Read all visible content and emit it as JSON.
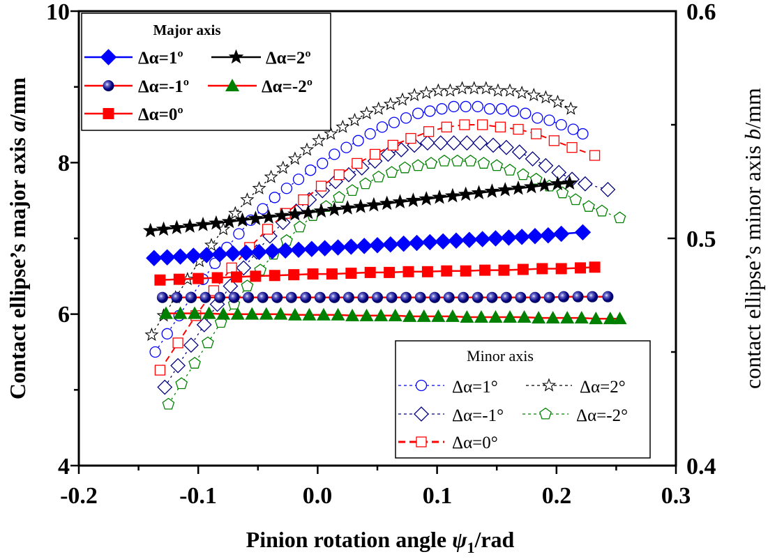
{
  "chart_data": {
    "type": "line",
    "title": "",
    "xlabel": "Pinion rotation angle ψ1/rad",
    "xlabel_main": "Pinion rotation angle ",
    "xlabel_symbol": "ψ",
    "xlabel_subscript": "1",
    "xlabel_unit": "/rad",
    "ylabel": "Contact ellipse's major axis a/mm",
    "ylabel_main": "Contact ellipse’s major axis ",
    "ylabel_symbol": "a",
    "ylabel_unit": "/mm",
    "y2label": "contact ellipse's minor axis b/mm",
    "y2label_main": "contact ellipse’s minor axis ",
    "y2label_symbol": "b",
    "y2label_unit": "/mm",
    "xlim": [
      -0.2,
      0.3
    ],
    "ylim": [
      4,
      10
    ],
    "y2lim": [
      0.4,
      0.6
    ],
    "xticks": [
      -0.2,
      -0.1,
      0.0,
      0.1,
      0.2,
      0.3
    ],
    "xtick_labels": [
      "-0.2",
      "-0.1",
      "0.0",
      "0.1",
      "0.2",
      "0.3"
    ],
    "yticks": [
      4,
      6,
      8,
      10
    ],
    "ytick_labels": [
      "4",
      "6",
      "8",
      "10"
    ],
    "y2ticks": [
      0.4,
      0.5,
      0.6
    ],
    "y2tick_labels": [
      "0.4",
      "0.5",
      "0.6"
    ],
    "grid": false,
    "legends": [
      {
        "title": "Major axis",
        "placement": "top-left",
        "entries": [
          "Δα=1º",
          "Δα=2º",
          "Δα=-1º",
          "Δα=-2º",
          "Δα=0º"
        ]
      },
      {
        "title": "Minor axis",
        "placement": "bottom-right",
        "entries": [
          "Δα=1°",
          "Δα=2°",
          "Δα=-1°",
          "Δα=-2°",
          "Δα=0°"
        ]
      }
    ],
    "series": [
      {
        "name": "Major Δα=1º",
        "axis": "left",
        "color": "#0000ff",
        "line_color": "#0000ff",
        "marker": "diamond-filled",
        "line": "solid",
        "x": [
          -0.137,
          -0.126,
          -0.115,
          -0.104,
          -0.093,
          -0.082,
          -0.071,
          -0.06,
          -0.049,
          -0.038,
          -0.027,
          -0.016,
          -0.005,
          0.006,
          0.017,
          0.028,
          0.039,
          0.05,
          0.061,
          0.072,
          0.083,
          0.094,
          0.105,
          0.116,
          0.127,
          0.138,
          0.149,
          0.16,
          0.171,
          0.182,
          0.193,
          0.204,
          0.222
        ],
        "y": [
          6.74,
          6.75,
          6.76,
          6.77,
          6.78,
          6.79,
          6.8,
          6.81,
          6.82,
          6.83,
          6.84,
          6.85,
          6.86,
          6.87,
          6.88,
          6.89,
          6.9,
          6.91,
          6.92,
          6.93,
          6.94,
          6.95,
          6.96,
          6.97,
          6.98,
          6.99,
          7.0,
          7.01,
          7.02,
          7.03,
          7.04,
          7.06,
          7.08
        ]
      },
      {
        "name": "Major Δα=2º",
        "axis": "left",
        "color": "#000000",
        "line_color": "#000000",
        "marker": "star-filled",
        "line": "solid",
        "x": [
          -0.14,
          -0.129,
          -0.118,
          -0.107,
          -0.096,
          -0.085,
          -0.074,
          -0.063,
          -0.052,
          -0.041,
          -0.03,
          -0.019,
          -0.008,
          0.003,
          0.014,
          0.025,
          0.036,
          0.047,
          0.058,
          0.069,
          0.08,
          0.091,
          0.102,
          0.113,
          0.124,
          0.135,
          0.146,
          0.157,
          0.168,
          0.179,
          0.19,
          0.201,
          0.211
        ],
        "y": [
          7.1,
          7.12,
          7.14,
          7.16,
          7.18,
          7.2,
          7.22,
          7.24,
          7.26,
          7.28,
          7.3,
          7.32,
          7.34,
          7.36,
          7.38,
          7.4,
          7.42,
          7.44,
          7.46,
          7.48,
          7.5,
          7.52,
          7.54,
          7.56,
          7.58,
          7.6,
          7.62,
          7.64,
          7.66,
          7.68,
          7.7,
          7.72,
          7.73
        ]
      },
      {
        "name": "Major Δα=-1º",
        "axis": "left",
        "color": "#000080",
        "line_color": "#ff0000",
        "marker": "ball",
        "line": "solid",
        "x": [
          -0.13,
          -0.118,
          -0.106,
          -0.094,
          -0.082,
          -0.07,
          -0.058,
          -0.046,
          -0.034,
          -0.022,
          -0.01,
          0.002,
          0.014,
          0.026,
          0.038,
          0.05,
          0.062,
          0.074,
          0.086,
          0.098,
          0.11,
          0.122,
          0.134,
          0.146,
          0.158,
          0.17,
          0.182,
          0.194,
          0.206,
          0.218,
          0.23,
          0.243
        ],
        "y": [
          6.22,
          6.22,
          6.22,
          6.22,
          6.22,
          6.22,
          6.22,
          6.22,
          6.22,
          6.22,
          6.22,
          6.22,
          6.22,
          6.22,
          6.22,
          6.22,
          6.22,
          6.22,
          6.22,
          6.22,
          6.22,
          6.22,
          6.22,
          6.22,
          6.22,
          6.22,
          6.22,
          6.22,
          6.23,
          6.23,
          6.23,
          6.23
        ]
      },
      {
        "name": "Major Δα=-2º",
        "axis": "left",
        "color": "#008000",
        "line_color": "#ff0000",
        "marker": "triangle-filled",
        "line": "solid",
        "x": [
          -0.127,
          -0.115,
          -0.103,
          -0.091,
          -0.079,
          -0.067,
          -0.055,
          -0.043,
          -0.031,
          -0.019,
          -0.007,
          0.005,
          0.017,
          0.029,
          0.041,
          0.053,
          0.065,
          0.077,
          0.089,
          0.101,
          0.113,
          0.125,
          0.137,
          0.149,
          0.161,
          0.173,
          0.185,
          0.197,
          0.209,
          0.221,
          0.233,
          0.245,
          0.253
        ],
        "y": [
          6.01,
          6.01,
          6.01,
          6.01,
          6.0,
          6.0,
          6.0,
          6.0,
          6.0,
          5.99,
          5.99,
          5.99,
          5.99,
          5.98,
          5.98,
          5.98,
          5.98,
          5.97,
          5.97,
          5.97,
          5.97,
          5.96,
          5.96,
          5.96,
          5.96,
          5.96,
          5.95,
          5.95,
          5.95,
          5.95,
          5.94,
          5.94,
          5.94
        ]
      },
      {
        "name": "Major Δα=0º",
        "axis": "left",
        "color": "#ff0000",
        "line_color": "#ff0000",
        "marker": "square-filled",
        "line": "solid",
        "x": [
          -0.132,
          -0.116,
          -0.1,
          -0.084,
          -0.068,
          -0.052,
          -0.036,
          -0.02,
          -0.004,
          0.012,
          0.028,
          0.044,
          0.06,
          0.076,
          0.092,
          0.108,
          0.124,
          0.14,
          0.156,
          0.172,
          0.188,
          0.204,
          0.22,
          0.232
        ],
        "y": [
          6.45,
          6.46,
          6.47,
          6.48,
          6.49,
          6.5,
          6.51,
          6.52,
          6.53,
          6.53,
          6.54,
          6.55,
          6.55,
          6.56,
          6.56,
          6.57,
          6.57,
          6.58,
          6.58,
          6.59,
          6.6,
          6.6,
          6.61,
          6.62
        ]
      },
      {
        "name": "Minor Δα=1°",
        "axis": "right",
        "color": "#0000ff",
        "line_color": "#0000ff",
        "marker": "circle-open",
        "line": "dotted",
        "x": [
          -0.136,
          -0.126,
          -0.116,
          -0.106,
          -0.096,
          -0.086,
          -0.076,
          -0.066,
          -0.056,
          -0.046,
          -0.036,
          -0.026,
          -0.016,
          -0.006,
          0.004,
          0.014,
          0.024,
          0.034,
          0.044,
          0.054,
          0.064,
          0.074,
          0.084,
          0.094,
          0.104,
          0.114,
          0.124,
          0.134,
          0.144,
          0.154,
          0.164,
          0.174,
          0.184,
          0.194,
          0.204,
          0.214,
          0.222
        ],
        "y": [
          0.45,
          0.458,
          0.466,
          0.474,
          0.482,
          0.489,
          0.496,
          0.502,
          0.508,
          0.513,
          0.518,
          0.522,
          0.526,
          0.53,
          0.533,
          0.537,
          0.54,
          0.543,
          0.546,
          0.549,
          0.551,
          0.553,
          0.555,
          0.556,
          0.557,
          0.558,
          0.558,
          0.558,
          0.557,
          0.557,
          0.556,
          0.555,
          0.553,
          0.552,
          0.55,
          0.548,
          0.546
        ]
      },
      {
        "name": "Minor Δα=2°",
        "axis": "right",
        "color": "#000000",
        "line_color": "#000000",
        "marker": "star-open",
        "line": "dotted",
        "x": [
          -0.139,
          -0.129,
          -0.119,
          -0.109,
          -0.099,
          -0.089,
          -0.079,
          -0.069,
          -0.059,
          -0.049,
          -0.039,
          -0.029,
          -0.019,
          -0.009,
          0.001,
          0.011,
          0.021,
          0.031,
          0.041,
          0.051,
          0.061,
          0.071,
          0.081,
          0.091,
          0.101,
          0.111,
          0.121,
          0.131,
          0.141,
          0.151,
          0.161,
          0.171,
          0.181,
          0.191,
          0.201,
          0.212
        ],
        "y": [
          0.4575,
          0.466,
          0.474,
          0.482,
          0.49,
          0.497,
          0.504,
          0.511,
          0.517,
          0.522,
          0.527,
          0.531,
          0.535,
          0.539,
          0.543,
          0.546,
          0.549,
          0.552,
          0.555,
          0.557,
          0.559,
          0.561,
          0.563,
          0.564,
          0.565,
          0.565,
          0.566,
          0.566,
          0.566,
          0.565,
          0.565,
          0.564,
          0.563,
          0.562,
          0.56,
          0.557
        ]
      },
      {
        "name": "Minor Δα=-1°",
        "axis": "right",
        "color": "#000080",
        "line_color": "#000080",
        "marker": "diamond-open",
        "line": "dotted",
        "x": [
          -0.128,
          -0.117,
          -0.106,
          -0.095,
          -0.084,
          -0.073,
          -0.062,
          -0.051,
          -0.04,
          -0.029,
          -0.018,
          -0.007,
          0.004,
          0.015,
          0.026,
          0.037,
          0.048,
          0.059,
          0.07,
          0.081,
          0.092,
          0.103,
          0.114,
          0.125,
          0.136,
          0.147,
          0.158,
          0.169,
          0.18,
          0.191,
          0.202,
          0.213,
          0.224,
          0.243
        ],
        "y": [
          0.4345,
          0.444,
          0.453,
          0.462,
          0.471,
          0.479,
          0.487,
          0.494,
          0.501,
          0.507,
          0.512,
          0.517,
          0.521,
          0.525,
          0.528,
          0.531,
          0.534,
          0.537,
          0.539,
          0.541,
          0.542,
          0.542,
          0.542,
          0.542,
          0.542,
          0.541,
          0.54,
          0.538,
          0.535,
          0.532,
          0.529,
          0.526,
          0.524,
          0.5215
        ]
      },
      {
        "name": "Minor Δα=-2°",
        "axis": "right",
        "color": "#008000",
        "line_color": "#008000",
        "marker": "pentagon-open",
        "line": "dotted",
        "x": [
          -0.125,
          -0.114,
          -0.103,
          -0.092,
          -0.081,
          -0.07,
          -0.059,
          -0.048,
          -0.037,
          -0.026,
          -0.015,
          -0.004,
          0.007,
          0.018,
          0.029,
          0.04,
          0.051,
          0.062,
          0.073,
          0.084,
          0.095,
          0.106,
          0.117,
          0.128,
          0.139,
          0.15,
          0.161,
          0.172,
          0.183,
          0.194,
          0.205,
          0.216,
          0.227,
          0.238,
          0.253
        ],
        "y": [
          0.427,
          0.436,
          0.445,
          0.454,
          0.463,
          0.471,
          0.479,
          0.486,
          0.493,
          0.499,
          0.505,
          0.51,
          0.514,
          0.518,
          0.521,
          0.524,
          0.527,
          0.529,
          0.531,
          0.532,
          0.533,
          0.534,
          0.534,
          0.534,
          0.533,
          0.532,
          0.53,
          0.528,
          0.526,
          0.523,
          0.52,
          0.517,
          0.514,
          0.512,
          0.509
        ]
      },
      {
        "name": "Minor Δα=0°",
        "axis": "right",
        "color": "#ff0000",
        "line_color": "#ff0000",
        "marker": "square-open",
        "line": "dashed",
        "x": [
          -0.132,
          -0.117,
          -0.102,
          -0.087,
          -0.072,
          -0.057,
          -0.042,
          -0.027,
          -0.012,
          0.003,
          0.018,
          0.033,
          0.048,
          0.063,
          0.078,
          0.093,
          0.108,
          0.123,
          0.138,
          0.153,
          0.168,
          0.183,
          0.198,
          0.213,
          0.232
        ],
        "y": [
          0.442,
          0.454,
          0.466,
          0.477,
          0.487,
          0.496,
          0.504,
          0.511,
          0.517,
          0.523,
          0.528,
          0.533,
          0.537,
          0.541,
          0.544,
          0.547,
          0.549,
          0.55,
          0.55,
          0.549,
          0.548,
          0.546,
          0.543,
          0.54,
          0.5365
        ]
      }
    ]
  }
}
